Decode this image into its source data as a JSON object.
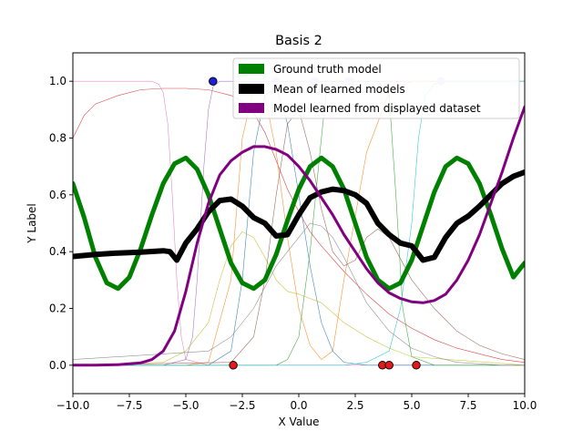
{
  "chart_data": {
    "type": "line",
    "title": "Basis 2",
    "xlabel": "X Value",
    "ylabel": "Y Label",
    "xlim": [
      -10,
      10
    ],
    "ylim": [
      -0.1,
      1.1
    ],
    "xticks": [
      "−10.0",
      "−7.5",
      "−5.0",
      "−2.5",
      "0.0",
      "2.5",
      "5.0",
      "7.5",
      "10.0"
    ],
    "yticks": [
      "0.0",
      "0.2",
      "0.4",
      "0.6",
      "0.8",
      "1.0"
    ],
    "grid": false,
    "legend_position": "top-right",
    "series": [
      {
        "name": "Ground truth model",
        "color": "#008000",
        "x": [
          -10,
          -9.5,
          -9,
          -8.5,
          -8,
          -7.5,
          -7,
          -6.5,
          -6,
          -5.5,
          -5,
          -4.5,
          -4,
          -3.5,
          -3,
          -2.5,
          -2,
          -1.5,
          -1,
          -0.5,
          0,
          0.5,
          1,
          1.5,
          2,
          2.5,
          3,
          3.5,
          4,
          4.5,
          5,
          5.5,
          6,
          6.5,
          7,
          7.5,
          8,
          8.5,
          9,
          9.5,
          10
        ],
        "y": [
          0.64,
          0.52,
          0.38,
          0.29,
          0.27,
          0.31,
          0.41,
          0.53,
          0.64,
          0.71,
          0.73,
          0.69,
          0.6,
          0.48,
          0.36,
          0.29,
          0.27,
          0.3,
          0.39,
          0.51,
          0.62,
          0.7,
          0.73,
          0.7,
          0.62,
          0.5,
          0.38,
          0.3,
          0.27,
          0.29,
          0.37,
          0.49,
          0.61,
          0.7,
          0.73,
          0.71,
          0.64,
          0.53,
          0.41,
          0.31,
          0.36
        ]
      },
      {
        "name": "Mean of learned models",
        "color": "#000000",
        "x": [
          -10,
          -9,
          -8,
          -7,
          -6,
          -5.7,
          -5.4,
          -5.2,
          -5,
          -4.5,
          -4,
          -3.5,
          -3,
          -2.5,
          -2,
          -1.5,
          -1,
          -0.5,
          0,
          0.5,
          1,
          1.5,
          2,
          2.5,
          3,
          3.5,
          4,
          4.5,
          5,
          5.5,
          6,
          6.5,
          7,
          7.5,
          8,
          8.5,
          9,
          9.5,
          10
        ],
        "y": [
          0.383,
          0.39,
          0.395,
          0.398,
          0.403,
          0.4,
          0.37,
          0.4,
          0.43,
          0.48,
          0.54,
          0.58,
          0.585,
          0.56,
          0.52,
          0.5,
          0.455,
          0.46,
          0.53,
          0.59,
          0.61,
          0.62,
          0.615,
          0.6,
          0.57,
          0.5,
          0.46,
          0.43,
          0.42,
          0.37,
          0.38,
          0.45,
          0.5,
          0.525,
          0.56,
          0.6,
          0.64,
          0.665,
          0.68
        ]
      },
      {
        "name": "Model learned from displayed dataset",
        "color": "#800080",
        "x": [
          -10,
          -9,
          -8,
          -7,
          -6.5,
          -6,
          -5.5,
          -5,
          -4.5,
          -4,
          -3.5,
          -3,
          -2.5,
          -2,
          -1.5,
          -1,
          -0.5,
          0,
          0.5,
          1,
          1.5,
          2,
          2.5,
          3,
          3.5,
          4,
          4.5,
          5,
          5.5,
          6,
          6.5,
          7,
          7.5,
          8,
          8.5,
          9,
          9.5,
          10
        ],
        "y": [
          0.0,
          0.0,
          0.002,
          0.008,
          0.02,
          0.05,
          0.12,
          0.26,
          0.43,
          0.57,
          0.67,
          0.72,
          0.75,
          0.77,
          0.77,
          0.76,
          0.74,
          0.7,
          0.65,
          0.59,
          0.53,
          0.46,
          0.4,
          0.34,
          0.29,
          0.255,
          0.235,
          0.223,
          0.22,
          0.228,
          0.25,
          0.3,
          0.37,
          0.46,
          0.57,
          0.68,
          0.8,
          0.91
        ]
      }
    ],
    "basis_curves": [
      {
        "color": "#d62728",
        "x": [
          -10,
          -9.5,
          -9,
          -8,
          -7,
          -6,
          -5,
          -4,
          -3,
          -2.5,
          -2,
          -1.5,
          -1,
          -0.5,
          0,
          0.5,
          1,
          2,
          3,
          4,
          5,
          6,
          7,
          8,
          9,
          10
        ],
        "y": [
          0.8,
          0.88,
          0.92,
          0.95,
          0.97,
          0.975,
          0.975,
          0.97,
          0.95,
          0.93,
          0.89,
          0.82,
          0.72,
          0.62,
          0.54,
          0.47,
          0.42,
          0.33,
          0.25,
          0.18,
          0.13,
          0.09,
          0.06,
          0.04,
          0.02,
          0.01
        ]
      },
      {
        "color": "#e377c2",
        "x": [
          -10,
          -9,
          -8,
          -7,
          -6.5,
          -6.2,
          -6,
          -5.8,
          -5.6,
          -5.4,
          -5.2,
          -5,
          -4,
          -2,
          0,
          2,
          4,
          6,
          8,
          10
        ],
        "y": [
          1,
          1,
          1,
          1,
          1,
          0.99,
          0.96,
          0.85,
          0.6,
          0.3,
          0.1,
          0.02,
          0,
          0,
          0,
          0,
          0,
          0,
          0,
          0
        ]
      },
      {
        "color": "#9467bd",
        "x": [
          -10,
          -6,
          -5,
          -4.7,
          -4.5,
          -4.2,
          -4,
          -3.8,
          -3.5,
          -3,
          0,
          5,
          10
        ],
        "y": [
          0,
          0,
          0.02,
          0.1,
          0.3,
          0.7,
          0.9,
          0.98,
          1,
          1,
          1,
          1,
          1
        ]
      },
      {
        "color": "#ff7f0e",
        "x": [
          -10,
          -5,
          -4,
          -3,
          -2.5,
          -2,
          -1.5,
          -1,
          -0.5,
          0,
          0.5,
          1,
          1.5,
          2,
          3,
          4,
          5,
          10
        ],
        "y": [
          0,
          0,
          0.01,
          0.3,
          0.8,
          0.97,
          0.95,
          0.75,
          0.45,
          0.2,
          0.07,
          0.02,
          0.05,
          0.3,
          0.75,
          0.96,
          1,
          1
        ]
      },
      {
        "color": "#1f77b4",
        "x": [
          -10,
          -4,
          -3,
          -2.5,
          -2,
          -1.5,
          -1,
          -0.5,
          0,
          0.5,
          1,
          1.5,
          2,
          3,
          4,
          10
        ],
        "y": [
          0,
          0,
          0.05,
          0.3,
          0.75,
          0.95,
          0.98,
          0.85,
          0.6,
          0.35,
          0.15,
          0.05,
          0.01,
          0,
          0,
          0
        ]
      },
      {
        "color": "#bcbd22",
        "x": [
          -10,
          -6,
          -5,
          -4,
          -3.5,
          -3,
          -2.5,
          -2,
          -1.5,
          -1,
          -0.5,
          0,
          1,
          2,
          3,
          4,
          5,
          10
        ],
        "y": [
          0,
          0.01,
          0.05,
          0.15,
          0.3,
          0.42,
          0.47,
          0.45,
          0.38,
          0.3,
          0.26,
          0.25,
          0.22,
          0.15,
          0.1,
          0.06,
          0.03,
          0
        ]
      },
      {
        "color": "#2ca02c",
        "x": [
          -10,
          -1,
          -0.5,
          0,
          0.5,
          1,
          1.2,
          1.5,
          2,
          3,
          3.5,
          4,
          4.3,
          4.6,
          5,
          6,
          10
        ],
        "y": [
          0,
          0,
          0.02,
          0.1,
          0.4,
          0.8,
          0.95,
          1,
          1,
          1,
          1,
          0.95,
          0.6,
          0.2,
          0.03,
          0,
          0
        ]
      },
      {
        "color": "#8c564b",
        "x": [
          -10,
          -3,
          -2,
          -1.5,
          -1,
          -0.5,
          0,
          0.5,
          1,
          1.5,
          2,
          2.5,
          3,
          3.5,
          4,
          5,
          6,
          7,
          8,
          9,
          10
        ],
        "y": [
          0,
          0.01,
          0.1,
          0.3,
          0.6,
          0.85,
          0.9,
          0.75,
          0.55,
          0.4,
          0.35,
          0.37,
          0.45,
          0.48,
          0.45,
          0.3,
          0.2,
          0.12,
          0.07,
          0.04,
          0.02
        ]
      },
      {
        "color": "#17becf",
        "x": [
          -10,
          0,
          2,
          3,
          4,
          4.5,
          5,
          5.3,
          5.6,
          6,
          6.5,
          7,
          8,
          10
        ],
        "y": [
          0,
          0,
          0,
          0.01,
          0.05,
          0.2,
          0.5,
          0.8,
          0.95,
          0.99,
          1,
          1,
          1,
          1
        ]
      },
      {
        "color": "#7f7f7f",
        "x": [
          -10,
          -4,
          -3,
          -2,
          -1,
          0,
          0.5,
          1,
          1.5,
          2,
          2.5,
          3,
          4,
          5,
          6,
          7,
          8,
          9,
          10
        ],
        "y": [
          0.02,
          0.05,
          0.1,
          0.2,
          0.35,
          0.45,
          0.5,
          0.49,
          0.45,
          0.38,
          0.3,
          0.22,
          0.12,
          0.06,
          0.03,
          0.01,
          0.005,
          0,
          0
        ]
      }
    ],
    "data_points": {
      "x": [
        -3.8,
        -1.0,
        0.7,
        2.2,
        2.3,
        6.3,
        -2.9,
        3.7,
        4.0,
        5.2
      ],
      "y": [
        1,
        1,
        1,
        1,
        1,
        1,
        0,
        0,
        0,
        0
      ],
      "label": [
        1,
        1,
        1,
        1,
        1,
        1,
        0,
        0,
        0,
        0
      ],
      "highlighted": [
        true,
        false,
        false,
        false,
        false,
        false,
        true,
        true,
        true,
        true
      ]
    },
    "point_colors": {
      "class_1_highlighted": "#1f1fd6",
      "class_1_faded": "#c8c8ee",
      "class_0": "#e31a1c"
    }
  }
}
